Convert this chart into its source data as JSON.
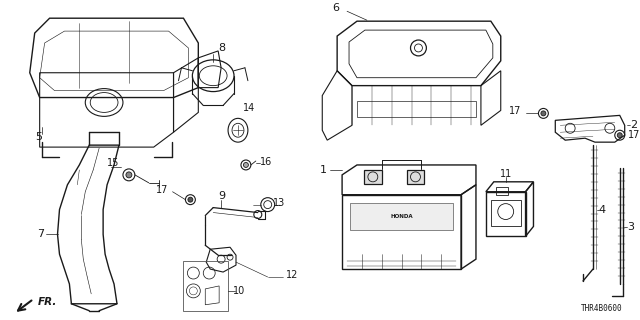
{
  "bg_color": "#ffffff",
  "line_color": "#1a1a1a",
  "diagram_code": "THR4B0600",
  "figsize": [
    6.4,
    3.2
  ],
  "dpi": 100,
  "label_fontsize": 7.0,
  "label_fontsize_small": 6.5
}
